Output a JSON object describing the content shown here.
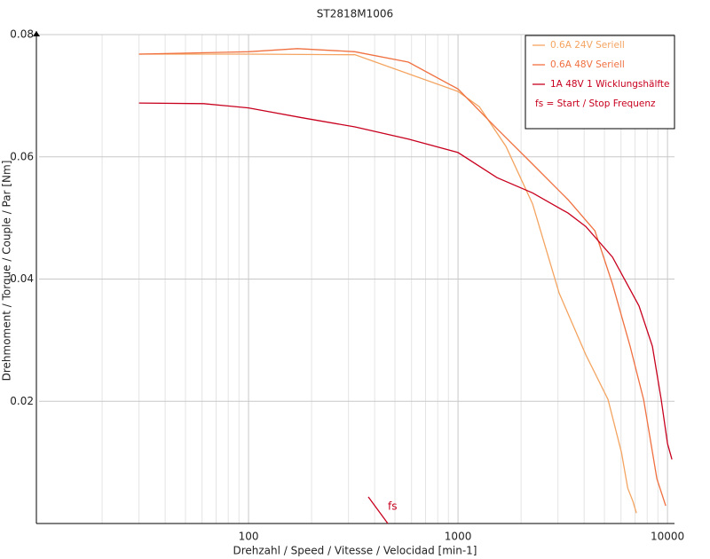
{
  "chart_data": {
    "type": "line",
    "title": "ST2818M1006",
    "x_label": "Drehzahl / Speed / Vitesse / Velocidad [min-1]",
    "y_label": "Drehmoment / Torque / Couple / Par [Nm]",
    "log_x": true,
    "grid": true,
    "legend_position": "upper right",
    "xlim": [
      10,
      10800
    ],
    "ylim": [
      0,
      0.08
    ],
    "xticks": [
      100,
      1000,
      10000
    ],
    "xminorticks": [
      20,
      30,
      40,
      50,
      60,
      70,
      80,
      90,
      200,
      300,
      400,
      500,
      600,
      700,
      800,
      900,
      2000,
      3000,
      4000,
      5000,
      6000,
      7000,
      8000,
      9000
    ],
    "yticks": [
      0.02,
      0.04,
      0.06,
      0.08
    ],
    "legend_note": "fs = Start / Stop Frequenz",
    "annotation": "fs",
    "series": [
      {
        "name": "0.6A  24V  Seriell",
        "color": "#f4a460",
        "x": [
          30,
          100,
          322,
          1000,
          1264,
          1694,
          2270,
          3040,
          4075,
          5200,
          6030,
          6460,
          6840,
          7110
        ],
        "values": [
          0.0768,
          0.0768,
          0.0767,
          0.0707,
          0.0682,
          0.0617,
          0.0523,
          0.0377,
          0.0276,
          0.0203,
          0.0116,
          0.0058,
          0.0036,
          0.0017
        ]
      },
      {
        "name": "0.6A  48V  Seriell",
        "color": "#f07040",
        "x": [
          30,
          100,
          171,
          322,
          580,
          1000,
          1535,
          2270,
          3350,
          4500,
          5460,
          6630,
          7690,
          8900,
          9810
        ],
        "values": [
          0.0768,
          0.0772,
          0.0777,
          0.0772,
          0.0755,
          0.0711,
          0.0646,
          0.0588,
          0.053,
          0.0479,
          0.0392,
          0.029,
          0.0203,
          0.0073,
          0.0029
        ]
      },
      {
        "name": "1A  48V  1 Wicklungshälfte",
        "color": "#c8001e",
        "x": [
          30,
          61,
          100,
          180,
          322,
          580,
          1000,
          1535,
          2270,
          3350,
          4075,
          5460,
          7310,
          8470,
          9330,
          10000,
          10500
        ],
        "values": [
          0.0688,
          0.0687,
          0.068,
          0.0664,
          0.0649,
          0.0629,
          0.0607,
          0.0566,
          0.0541,
          0.0508,
          0.0486,
          0.0436,
          0.0356,
          0.029,
          0.0203,
          0.0131,
          0.0105
        ]
      }
    ]
  }
}
